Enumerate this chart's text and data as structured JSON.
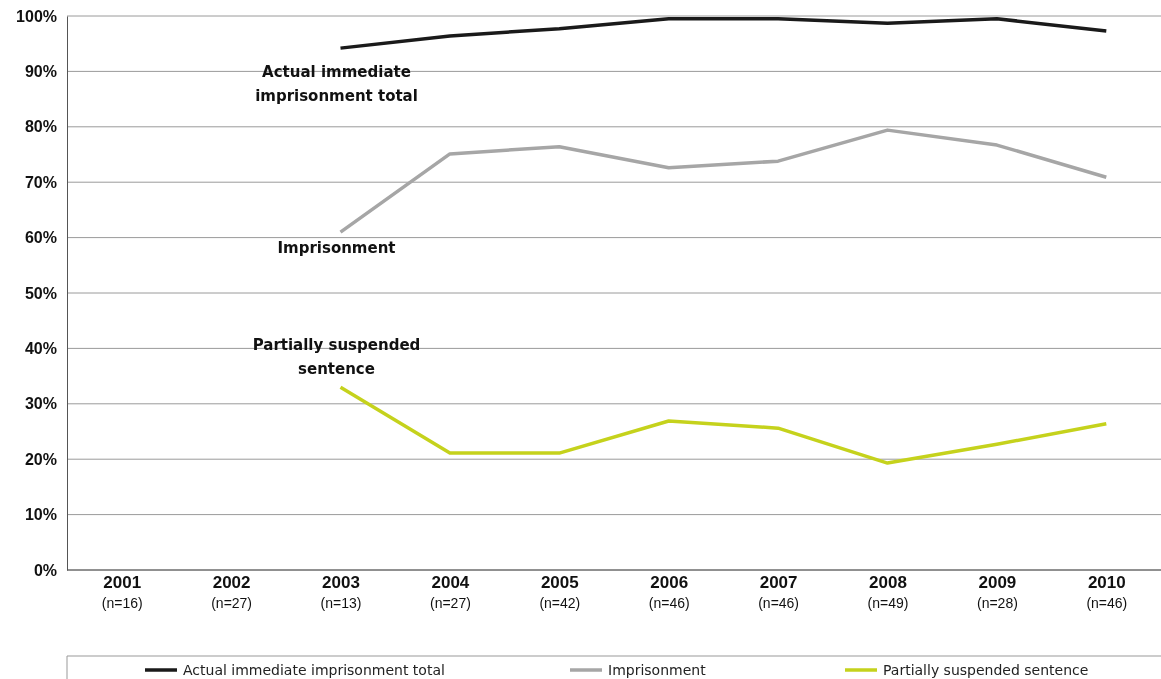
{
  "chart_data": {
    "type": "line",
    "categories": [
      "2001\n(n=16)",
      "2002\n(n=27)",
      "2003\n(n=13)",
      "2004\n(n=27)",
      "2005\n(n=42)",
      "2006\n(n=46)",
      "2007\n(n=46)",
      "2008\n(n=49)",
      "2009\n(n=28)",
      "2010\n(n=46)"
    ],
    "series": [
      {
        "name": "Actual immediate imprisonment total",
        "color": "#1a1a1a",
        "values": [
          null,
          null,
          94.2,
          96.4,
          97.7,
          99.5,
          99.5,
          98.7,
          99.5,
          97.3
        ]
      },
      {
        "name": "Imprisonment",
        "color": "#a6a6a6",
        "values": [
          null,
          null,
          61.0,
          75.1,
          76.4,
          72.6,
          73.8,
          79.4,
          76.7,
          70.9
        ]
      },
      {
        "name": "Partially suspended sentence",
        "color": "#c5d21c",
        "values": [
          null,
          null,
          33.0,
          21.1,
          21.1,
          26.9,
          25.6,
          19.3,
          22.7,
          26.4
        ]
      }
    ],
    "ylim": [
      0,
      100
    ],
    "yticks": [
      {
        "value": 0,
        "label": "0%"
      },
      {
        "value": 10,
        "label": "10%"
      },
      {
        "value": 20,
        "label": "20%"
      },
      {
        "value": 30,
        "label": "30%"
      },
      {
        "value": 40,
        "label": "40%"
      },
      {
        "value": 50,
        "label": "50%"
      },
      {
        "value": 60,
        "label": "60%"
      },
      {
        "value": 70,
        "label": "70%"
      },
      {
        "value": 80,
        "label": "80%"
      },
      {
        "value": 90,
        "label": "90%"
      },
      {
        "value": 100,
        "label": "100%"
      }
    ],
    "grid": "y",
    "legend": "bottom",
    "marker": "none",
    "line_style": "solid",
    "annotations": [
      "Actual immediate\nimprisonment total",
      "Imprisonment",
      "Partially suspended\nsentence"
    ]
  }
}
